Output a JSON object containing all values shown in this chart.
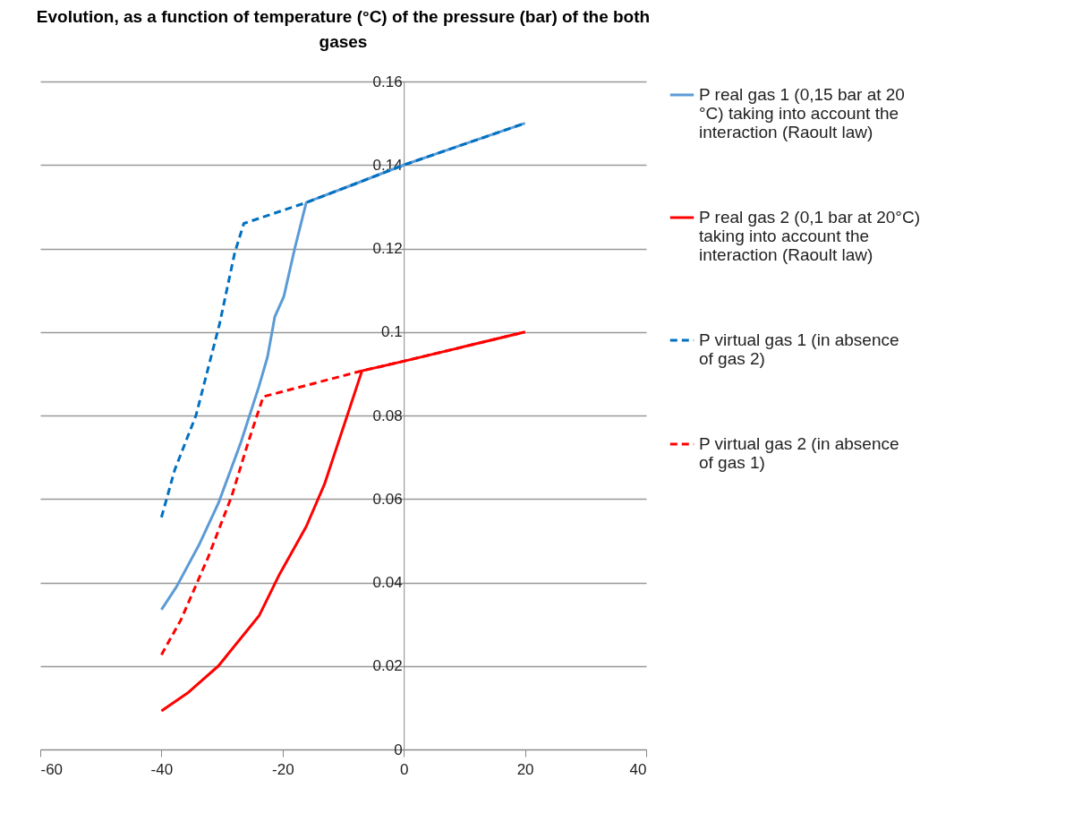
{
  "chart_data": {
    "type": "line",
    "title": "Evolution, as a function of temperature (°C) of the pressure (bar) of the both gases",
    "xlim": [
      -60,
      40
    ],
    "xticks": [
      -60,
      -40,
      -20,
      0,
      20,
      40
    ],
    "ylim": [
      0,
      0.16
    ],
    "yticks": [
      0,
      0.02,
      0.04,
      0.06,
      0.08,
      0.1,
      0.12,
      0.14,
      0.16
    ],
    "grid": "y",
    "legend": "right",
    "marker": "none",
    "series": [
      {
        "name": "P real gas 1 (0,15 bar at 20 °C) taking into account the interaction (Raoult law)",
        "color": "#5b9bd5",
        "line_style": "solid",
        "x": [
          -40,
          -37.5,
          -33.8,
          -30.6,
          -26.9,
          -23.9,
          -22.5,
          -21.3,
          -19.8,
          -18,
          -16.1,
          -8,
          0,
          10,
          20
        ],
        "values": [
          0.0335,
          0.039,
          0.049,
          0.059,
          0.0735,
          0.087,
          0.094,
          0.1036,
          0.1085,
          0.12,
          0.131,
          0.1355,
          0.14,
          0.145,
          0.15
        ]
      },
      {
        "name": "P real gas 2 (0,1 bar at 20°C) taking into account the interaction (Raoult law)",
        "color": "#ff0000",
        "line_style": "solid",
        "x": [
          -40,
          -35.7,
          -30.6,
          -23.9,
          -20.5,
          -16.1,
          -13.1,
          -9.2,
          -6.9,
          0,
          10,
          20
        ],
        "values": [
          0.0092,
          0.0135,
          0.02,
          0.032,
          0.042,
          0.0534,
          0.0635,
          0.0806,
          0.0907,
          0.093,
          0.0965,
          0.1
        ]
      },
      {
        "name": "P  virtual gas 1 (in absence of gas 2)",
        "color": "#0070c0",
        "line_style": "dashed",
        "x": [
          -40,
          -37.8,
          -34.3,
          -30.4,
          -27.9,
          -26.4,
          -16.1,
          -8,
          0,
          10,
          20
        ],
        "values": [
          0.0556,
          0.067,
          0.08,
          0.102,
          0.119,
          0.126,
          0.131,
          0.1355,
          0.14,
          0.145,
          0.15
        ]
      },
      {
        "name": "P  virtual gas 2 (in absence of gas 1)",
        "color": "#ff0000",
        "line_style": "dashed",
        "x": [
          -40,
          -36.8,
          -32.3,
          -28.4,
          -25.7,
          -23.2,
          -6.9,
          0,
          10,
          20
        ],
        "values": [
          0.0227,
          0.031,
          0.046,
          0.0607,
          0.0735,
          0.0845,
          0.0907,
          0.093,
          0.0965,
          0.1
        ]
      }
    ]
  }
}
